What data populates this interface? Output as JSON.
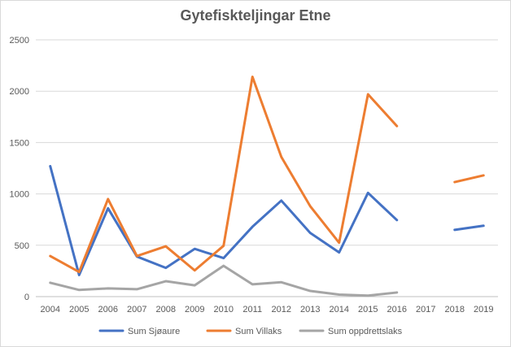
{
  "chart_data": {
    "type": "line",
    "title": "Gytefiskteljingar Etne",
    "xlabel": "",
    "ylabel": "",
    "categories": [
      "2004",
      "2005",
      "2006",
      "2007",
      "2008",
      "2009",
      "2010",
      "2011",
      "2012",
      "2013",
      "2014",
      "2015",
      "2016",
      "2017",
      "2018",
      "2019"
    ],
    "ylim": [
      0,
      2500
    ],
    "yticks": [
      0,
      500,
      1000,
      1500,
      2000,
      2500
    ],
    "grid": true,
    "legend_position": "bottom",
    "series": [
      {
        "name": "Sum Sjøaure",
        "color": "#4472c4",
        "values": [
          1270,
          210,
          860,
          390,
          280,
          465,
          375,
          680,
          935,
          620,
          430,
          1010,
          745,
          null,
          650,
          690
        ]
      },
      {
        "name": "Sum Villaks",
        "color": "#ed7d31",
        "values": [
          395,
          240,
          950,
          395,
          490,
          255,
          495,
          2140,
          1360,
          880,
          525,
          1970,
          1660,
          null,
          1115,
          1180
        ]
      },
      {
        "name": "Sum oppdrettslaks",
        "color": "#a5a5a5",
        "values": [
          135,
          65,
          80,
          72,
          150,
          110,
          300,
          120,
          140,
          55,
          20,
          10,
          40,
          null,
          null,
          null
        ]
      }
    ]
  }
}
